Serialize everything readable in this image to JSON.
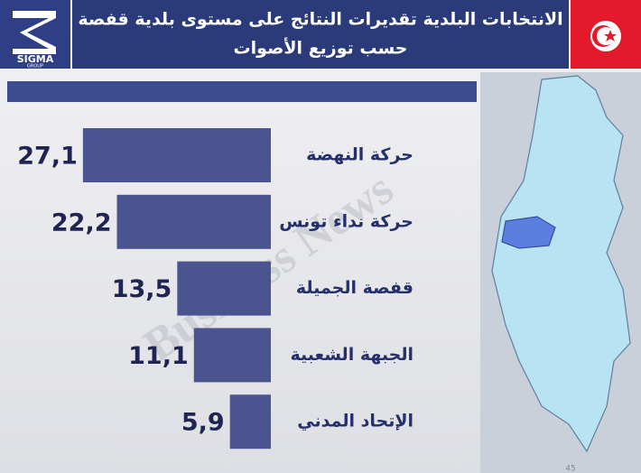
{
  "logo": {
    "name": "SIGMA",
    "tagline": "GROUP"
  },
  "watermark": "Business News",
  "page_number": 45,
  "chart_data": {
    "type": "hbar",
    "title": "الانتخابات البلدية تقديرات النتائج على مستوى بلدية قفصة",
    "subtitle": "حسب توزيع الأصوات",
    "categories": [
      "حركة النهضة",
      "حركة نداء تونس",
      "قفصة الجميلة",
      "الجبهة الشعبية",
      "الإتحاد المدني"
    ],
    "values": [
      27.1,
      22.2,
      13.5,
      11.1,
      5.9
    ],
    "value_labels": [
      "27,1",
      "22,2",
      "13,5",
      "11,1",
      "5,9"
    ],
    "color": "#4a5590"
  }
}
